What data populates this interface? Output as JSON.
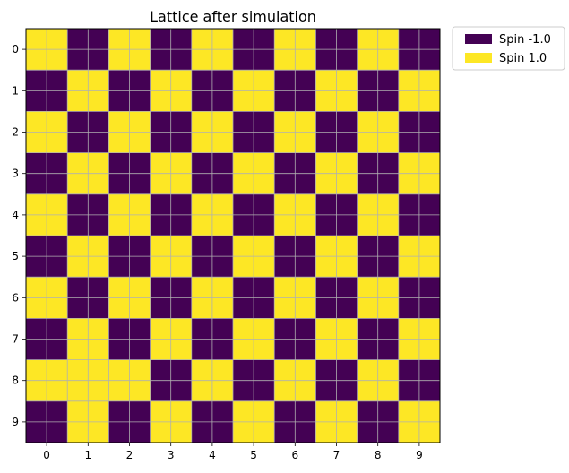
{
  "chart_data": {
    "type": "heatmap",
    "title": "Lattice after simulation",
    "xlabel": "",
    "ylabel": "",
    "x_ticks": [
      "0",
      "1",
      "2",
      "3",
      "4",
      "5",
      "6",
      "7",
      "8",
      "9"
    ],
    "y_ticks": [
      "0",
      "1",
      "2",
      "3",
      "4",
      "5",
      "6",
      "7",
      "8",
      "9"
    ],
    "grid": true,
    "legend_position": "outside-top-right",
    "colors": {
      "-1": "#440154",
      "1": "#fde725"
    },
    "legend": [
      {
        "label": "Spin -1.0",
        "value": -1,
        "color": "#440154"
      },
      {
        "label": "Spin 1.0",
        "value": 1,
        "color": "#fde725"
      }
    ],
    "values": [
      [
        1,
        -1,
        1,
        -1,
        1,
        -1,
        1,
        -1,
        1,
        -1
      ],
      [
        -1,
        1,
        -1,
        1,
        -1,
        1,
        -1,
        1,
        -1,
        1
      ],
      [
        1,
        -1,
        1,
        -1,
        1,
        -1,
        1,
        -1,
        1,
        -1
      ],
      [
        -1,
        1,
        -1,
        1,
        -1,
        1,
        -1,
        1,
        -1,
        1
      ],
      [
        1,
        -1,
        1,
        -1,
        1,
        -1,
        1,
        -1,
        1,
        -1
      ],
      [
        -1,
        1,
        -1,
        1,
        -1,
        1,
        -1,
        1,
        -1,
        1
      ],
      [
        1,
        -1,
        1,
        -1,
        1,
        -1,
        1,
        -1,
        1,
        -1
      ],
      [
        -1,
        1,
        -1,
        1,
        -1,
        1,
        -1,
        1,
        -1,
        1
      ],
      [
        1,
        1,
        1,
        -1,
        1,
        -1,
        1,
        -1,
        1,
        -1
      ],
      [
        -1,
        1,
        -1,
        1,
        -1,
        1,
        -1,
        1,
        -1,
        1
      ]
    ]
  }
}
